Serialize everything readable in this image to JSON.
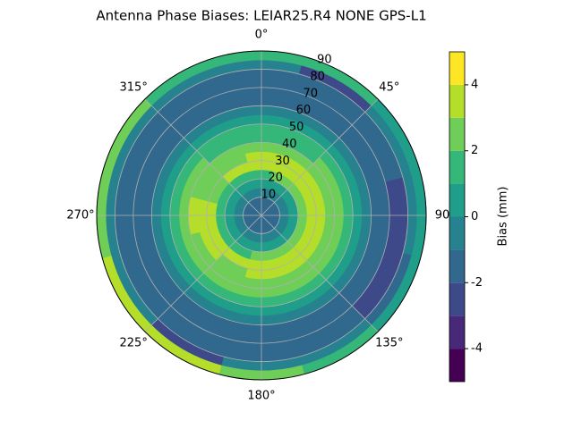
{
  "chart_data": {
    "type": "polar-contour",
    "title": "Antenna Phase Biases: LEIAR25.R4      NONE GPS-L1",
    "zenith": [
      2.5,
      7.5,
      12.5,
      17.5,
      22.5,
      27.5,
      32.5,
      37.5,
      42.5,
      47.5,
      52.5,
      57.5,
      62.5,
      67.5,
      72.5,
      77.5,
      82.5,
      87.5
    ],
    "azimuth": [
      0,
      30,
      60,
      90,
      120,
      150,
      180,
      210,
      240,
      270,
      300,
      330
    ],
    "values": [
      [
        -1.5,
        -1.5,
        -1.5,
        -1.5,
        -1.5,
        -1.5,
        -1.5,
        -1.5,
        -1.5,
        -1.5,
        -1.5,
        -1.5
      ],
      [
        -1.5,
        -1.5,
        -1.5,
        -1.5,
        -1.5,
        -1.5,
        -1.5,
        -1.5,
        -1.5,
        -1.5,
        -1.5,
        -1.5
      ],
      [
        -0.5,
        -0.5,
        -0.5,
        -0.5,
        -0.5,
        -0.5,
        -0.5,
        -0.5,
        -0.5,
        -0.5,
        -0.5,
        -0.5
      ],
      [
        0.5,
        0.5,
        0.5,
        0.5,
        0.5,
        0.5,
        0.5,
        0.5,
        0.5,
        0.5,
        0.5,
        0.5
      ],
      [
        1.5,
        2.5,
        2.5,
        2.5,
        2.5,
        2.5,
        2.5,
        1.5,
        1.5,
        1.5,
        1.5,
        1.5
      ],
      [
        3.5,
        3.5,
        3.5,
        3.5,
        3.5,
        3.5,
        3.5,
        3.5,
        3.5,
        3.5,
        2.5,
        3.5
      ],
      [
        3.5,
        3.5,
        3.5,
        3.5,
        3.5,
        3.5,
        3.5,
        2.5,
        3.5,
        3.5,
        2.5,
        2.5
      ],
      [
        2.5,
        2.5,
        2.5,
        2.5,
        2.5,
        2.5,
        2.5,
        2.5,
        2.5,
        3.5,
        2.5,
        2.5
      ],
      [
        1.5,
        1.5,
        2.5,
        2.5,
        2.5,
        2.5,
        2.5,
        2.5,
        2.5,
        2.5,
        2.5,
        1.5
      ],
      [
        1.5,
        1.5,
        1.5,
        1.5,
        1.5,
        1.5,
        1.5,
        1.5,
        1.5,
        1.5,
        1.5,
        1.5
      ],
      [
        0.5,
        0.5,
        0.5,
        0.5,
        0.5,
        0.5,
        0.5,
        0.5,
        0.5,
        0.5,
        0.5,
        0.5
      ],
      [
        -0.5,
        -0.5,
        -0.5,
        -0.5,
        -0.5,
        -0.5,
        -0.5,
        -0.5,
        -0.5,
        -0.5,
        -0.5,
        -0.5
      ],
      [
        -1.5,
        -1.5,
        -1.5,
        -1.5,
        -1.5,
        -1.5,
        -1.5,
        -1.5,
        -1.5,
        -1.5,
        -1.5,
        -1.5
      ],
      [
        -1.5,
        -1.5,
        -1.5,
        -1.5,
        -1.5,
        -1.5,
        -1.5,
        -1.5,
        -1.5,
        -1.5,
        -1.5,
        -1.5
      ],
      [
        -1.5,
        -1.5,
        -1.5,
        -2.5,
        -2.5,
        -1.5,
        -1.5,
        -1.5,
        -1.5,
        -1.5,
        -1.5,
        -1.5
      ],
      [
        -1.5,
        -1.5,
        -1.5,
        -2.5,
        -2.5,
        -1.5,
        -1.5,
        -1.5,
        -1.5,
        -1.5,
        -1.5,
        -1.5
      ],
      [
        -0.5,
        -2.5,
        -0.5,
        -0.5,
        -1.5,
        -0.5,
        -0.5,
        -2.5,
        -0.5,
        -0.5,
        -0.5,
        -0.5
      ],
      [
        1.5,
        1.5,
        0.5,
        0.5,
        0.5,
        1.5,
        2.5,
        3.5,
        3.5,
        2.5,
        2.5,
        1.5
      ]
    ],
    "rlim": [
      0,
      90
    ],
    "rticks": [
      10,
      20,
      30,
      40,
      50,
      60,
      70,
      80,
      90
    ],
    "aticks": [
      {
        "value": 0,
        "label": "0°"
      },
      {
        "value": 45,
        "label": "45°"
      },
      {
        "value": 90,
        "label": "90"
      },
      {
        "value": 135,
        "label": "135°"
      },
      {
        "value": 180,
        "label": "180°"
      },
      {
        "value": 225,
        "label": "225°"
      },
      {
        "value": 270,
        "label": "270°"
      },
      {
        "value": 315,
        "label": "315°"
      }
    ],
    "levels": [
      -5,
      -4,
      -3,
      -2,
      -1,
      0,
      1,
      2,
      3,
      4,
      5
    ],
    "colors": [
      "#440154",
      "#482878",
      "#3e4989",
      "#31688e",
      "#26828e",
      "#1f9e89",
      "#35b779",
      "#6ece58",
      "#b5de2b",
      "#fde725"
    ],
    "colorbar_label": "Bias (mm)",
    "cticks": [
      -4,
      -2,
      0,
      2,
      4
    ],
    "grid": true
  }
}
